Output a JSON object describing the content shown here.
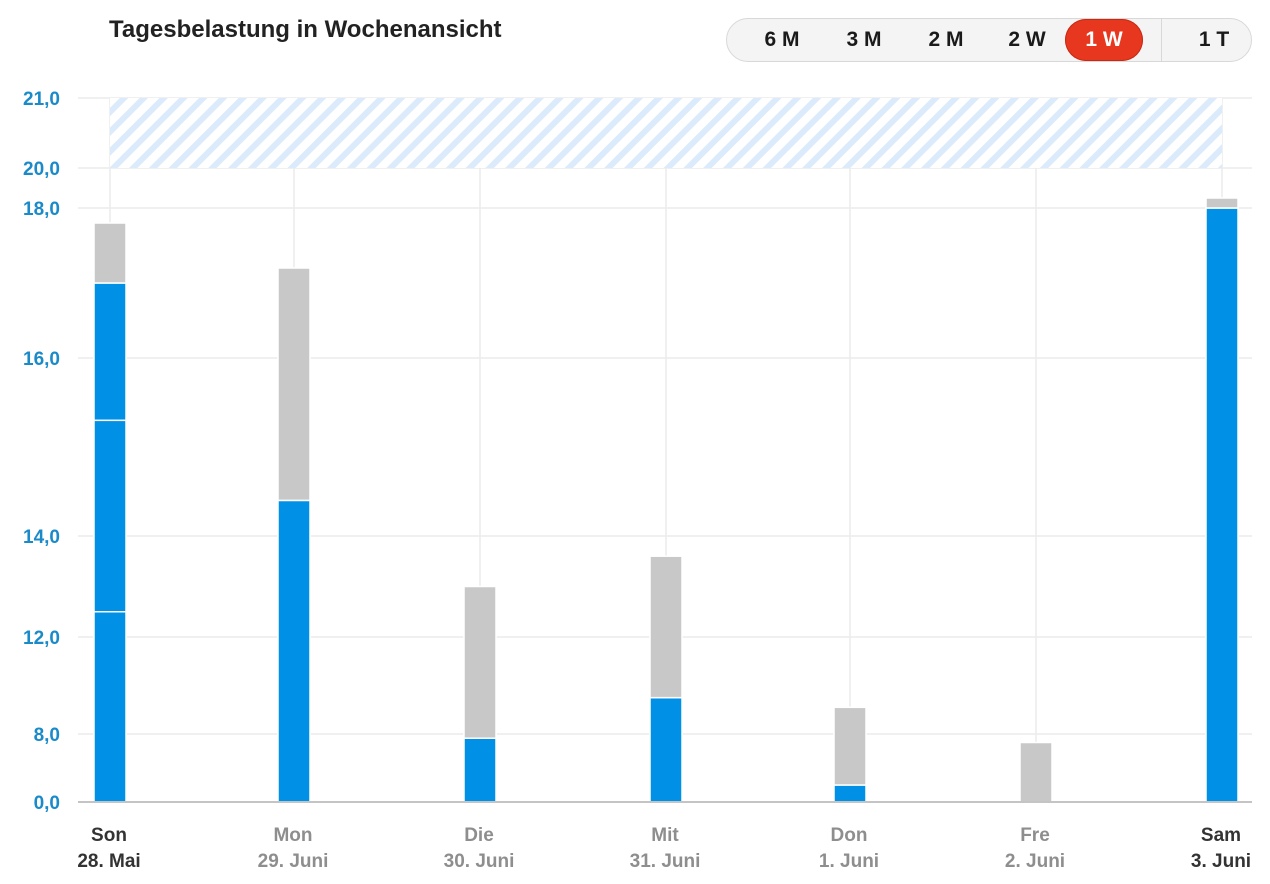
{
  "header": {
    "title": "Tagesbelastung in Wochenansicht"
  },
  "range_tabs": [
    {
      "label": "6 M",
      "active": false
    },
    {
      "label": "3 M",
      "active": false
    },
    {
      "label": "2 M",
      "active": false
    },
    {
      "label": "2 W",
      "active": false
    },
    {
      "label": "1 W",
      "active": true
    },
    {
      "label": "1 T",
      "active": false
    }
  ],
  "colors": {
    "accent": "#e8371f",
    "primary_series": "#0090e6",
    "secondary_series": "#c8c8c8",
    "axis_text": "#1a8ac9",
    "hatch": "#dcebfb"
  },
  "chart_data": {
    "type": "bar",
    "stacked": true,
    "categories": [
      {
        "day": "Son",
        "date": "28. Mai",
        "highlight": true
      },
      {
        "day": "Mon",
        "date": "29. Juni",
        "highlight": false
      },
      {
        "day": "Die",
        "date": "30. Juni",
        "highlight": false
      },
      {
        "day": "Mit",
        "date": "31. Juni",
        "highlight": false
      },
      {
        "day": "Don",
        "date": "1. Juni",
        "highlight": false
      },
      {
        "day": "Fre",
        "date": "2. Juni",
        "highlight": false
      },
      {
        "day": "Sam",
        "date": "3. Juni",
        "highlight": true
      }
    ],
    "segments": [
      [
        {
          "from": 0,
          "to": 12.5,
          "kind": "primary"
        },
        {
          "from": 12.5,
          "to": 15.3,
          "kind": "primary"
        },
        {
          "from": 15.3,
          "to": 17.0,
          "kind": "primary"
        },
        {
          "from": 17.0,
          "to": 17.8,
          "kind": "secondary"
        }
      ],
      [
        {
          "from": 0,
          "to": 14.4,
          "kind": "primary"
        },
        {
          "from": 14.4,
          "to": 17.2,
          "kind": "secondary"
        }
      ],
      [
        {
          "from": 0,
          "to": 7.5,
          "kind": "primary"
        },
        {
          "from": 7.5,
          "to": 13.0,
          "kind": "secondary"
        }
      ],
      [
        {
          "from": 0,
          "to": 9.5,
          "kind": "primary"
        },
        {
          "from": 9.5,
          "to": 13.6,
          "kind": "secondary"
        }
      ],
      [
        {
          "from": 0,
          "to": 2.0,
          "kind": "primary"
        },
        {
          "from": 2.0,
          "to": 9.1,
          "kind": "secondary"
        }
      ],
      [
        {
          "from": 0,
          "to": 7.0,
          "kind": "secondary"
        }
      ],
      [
        {
          "from": 0,
          "to": 18.0,
          "kind": "primary"
        },
        {
          "from": 18.0,
          "to": 18.5,
          "kind": "secondary"
        }
      ]
    ],
    "y_ticks": [
      {
        "value": 0,
        "label": "0,0"
      },
      {
        "value": 8,
        "label": "8,0"
      },
      {
        "value": 12,
        "label": "12,0"
      },
      {
        "value": 14,
        "label": "14,0"
      },
      {
        "value": 16,
        "label": "16,0"
      },
      {
        "value": 18,
        "label": "18,0"
      },
      {
        "value": 20,
        "label": "20,0"
      },
      {
        "value": 21,
        "label": "21,0"
      }
    ],
    "target_band": [
      20,
      21
    ],
    "ylim": [
      0,
      21
    ],
    "grid": true
  }
}
